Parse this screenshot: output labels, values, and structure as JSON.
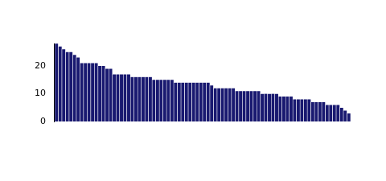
{
  "chart_data": {
    "type": "bar",
    "categories": [
      null,
      null,
      null,
      null,
      null,
      null,
      null,
      null,
      null,
      null,
      null,
      null,
      null,
      null,
      null,
      null,
      null,
      null,
      null,
      null,
      null,
      null,
      null,
      null,
      null,
      null,
      null,
      null,
      null,
      null,
      null,
      null,
      null,
      null,
      null,
      null,
      null,
      null,
      null,
      null,
      null,
      null,
      null,
      null,
      null,
      null,
      null,
      null,
      null,
      null,
      null,
      null,
      null,
      null,
      null,
      null,
      null,
      null,
      null,
      null,
      null,
      null,
      null,
      null,
      null,
      null,
      null,
      null,
      null,
      null,
      null,
      null,
      null,
      null,
      null,
      null,
      null,
      null,
      null,
      null,
      null,
      null
    ],
    "values": [
      28,
      27,
      26,
      25,
      25,
      24,
      23,
      21,
      21,
      21,
      21,
      21,
      20,
      20,
      19,
      19,
      17,
      17,
      17,
      17,
      17,
      16,
      16,
      16,
      16,
      16,
      16,
      15,
      15,
      15,
      15,
      15,
      15,
      14,
      14,
      14,
      14,
      14,
      14,
      14,
      14,
      14,
      14,
      13,
      12,
      12,
      12,
      12,
      12,
      12,
      11,
      11,
      11,
      11,
      11,
      11,
      11,
      10,
      10,
      10,
      10,
      10,
      9,
      9,
      9,
      9,
      8,
      8,
      8,
      8,
      8,
      7,
      7,
      7,
      7,
      6,
      6,
      6,
      6,
      5,
      4,
      3
    ],
    "color": "#191970",
    "ylim": [
      0,
      28
    ],
    "yticks": [
      0,
      10,
      20
    ],
    "grid": false,
    "tick_labels": "y"
  }
}
